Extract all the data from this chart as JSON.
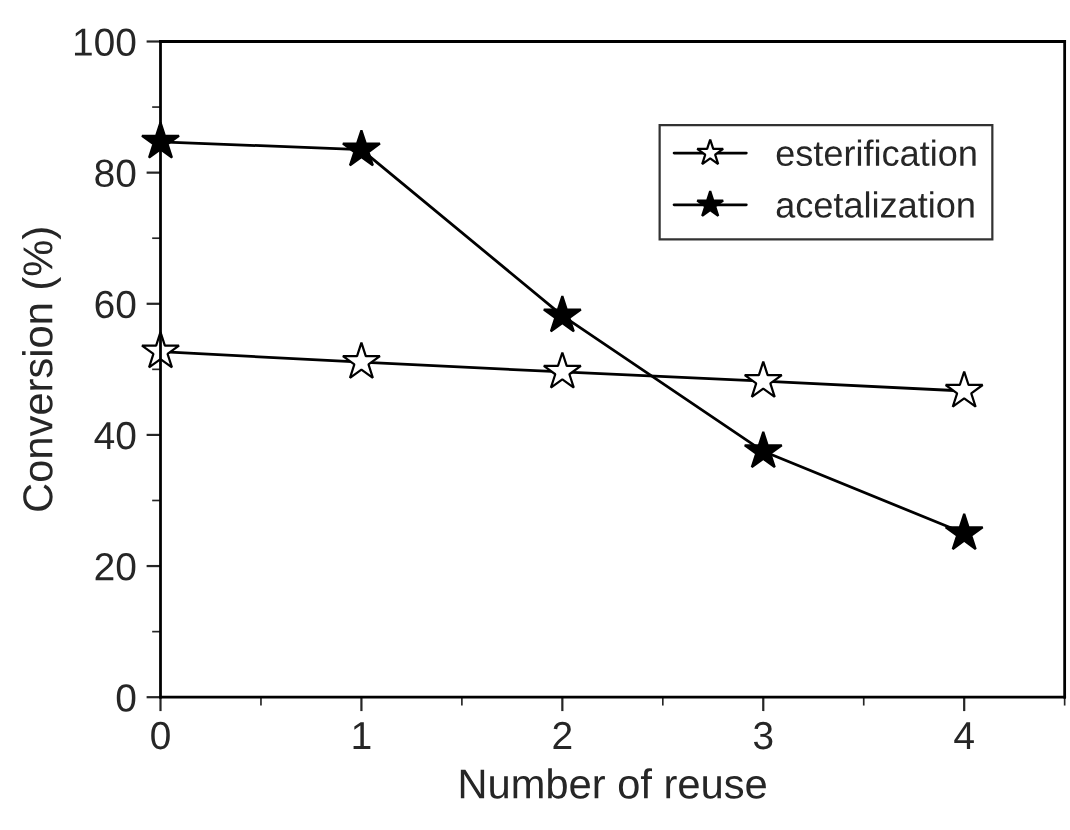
{
  "chart_data": {
    "type": "line",
    "xlabel": "Number of reuse",
    "ylabel": "Conversion (%)",
    "x": [
      0,
      1,
      2,
      3,
      4
    ],
    "series": [
      {
        "name": "esterification",
        "color": "#000000",
        "values": [
          52.7,
          51.1,
          49.6,
          48.2,
          46.7
        ],
        "marker": "star"
      },
      {
        "name": "acetalization",
        "color": "#000000",
        "values": [
          84.7,
          83.5,
          58.2,
          37.5,
          25.0
        ],
        "marker": "star"
      }
    ],
    "xlim": [
      0,
      4.5
    ],
    "xticks": [
      0,
      1,
      2,
      3,
      4
    ],
    "ylim": [
      0,
      100
    ],
    "yticks": [
      0,
      20,
      40,
      60,
      80,
      100
    ],
    "grid": false,
    "legend": "top right",
    "line_style": "solid"
  }
}
